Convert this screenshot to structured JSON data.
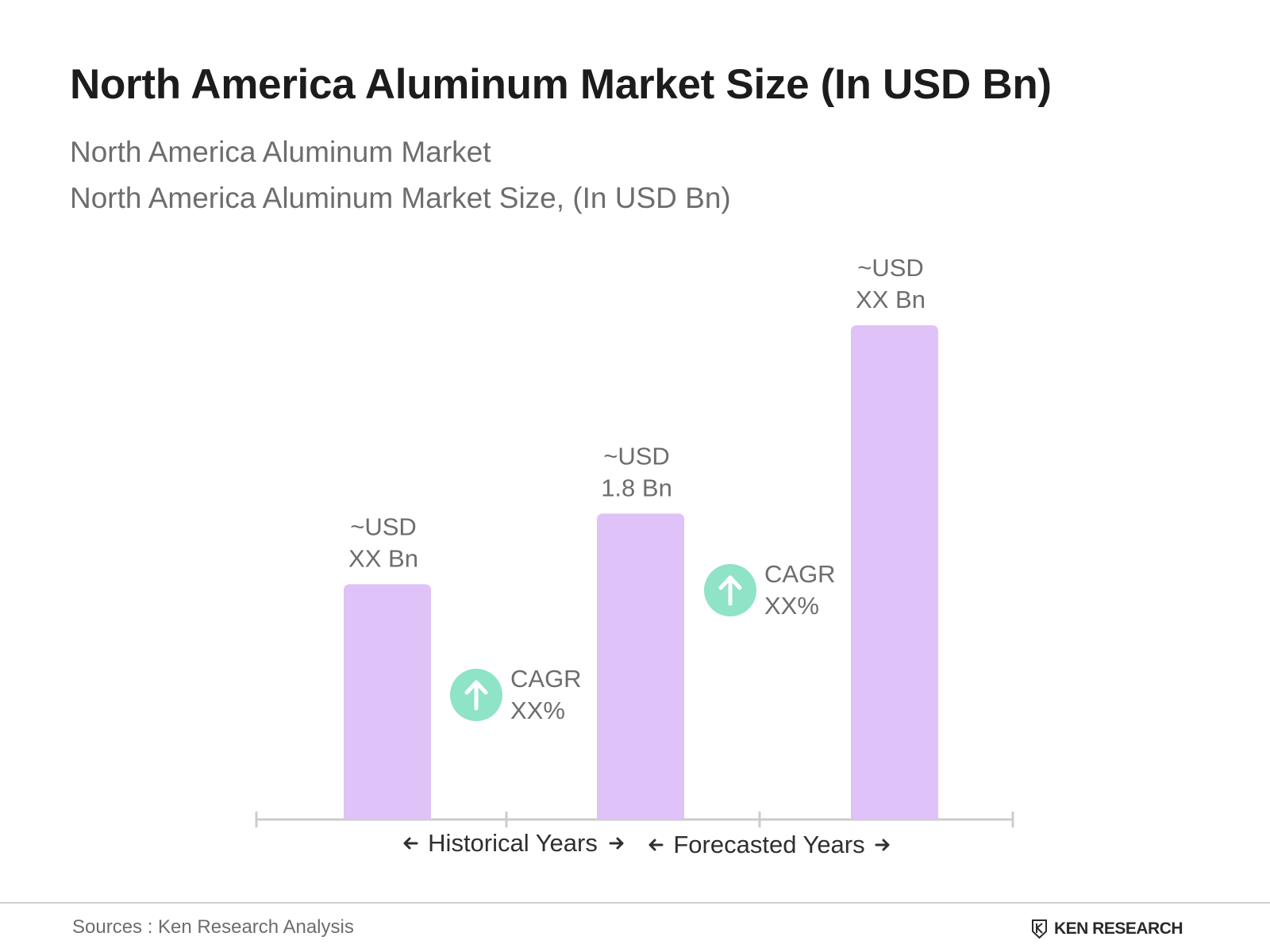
{
  "header": {
    "title": "North America Aluminum Market Size (In USD Bn)",
    "subtitle_1": "North America Aluminum Market",
    "subtitle_2": "North America Aluminum Market Size, (In USD Bn)"
  },
  "footer": {
    "source": "Sources : Ken Research Analysis",
    "brand": "KEN RESEARCH"
  },
  "colors": {
    "bar": "#dfc2f7",
    "cagr_badge": "#8fe3c6",
    "axis": "#cccccc",
    "label_text": "#6d6d6d",
    "period_text": "#2f2f2f"
  },
  "chart_data": {
    "type": "bar",
    "categories": [
      "",
      "",
      ""
    ],
    "values": [
      1.0,
      1.3,
      2.1
    ],
    "value_labels": [
      [
        "~USD",
        "XX Bn"
      ],
      [
        "~USD",
        "1.8 Bn"
      ],
      [
        "~USD",
        "XX Bn"
      ]
    ],
    "annotations": [
      {
        "type": "cagr",
        "label": "CAGR",
        "value": "XX%",
        "between": [
          0,
          1
        ]
      },
      {
        "type": "cagr",
        "label": "CAGR",
        "value": "XX%",
        "between": [
          1,
          2
        ]
      }
    ],
    "periods": [
      "Historical Years",
      "Forecasted Years"
    ],
    "xlabel": "",
    "ylabel": "",
    "grid": false,
    "legend": "none"
  }
}
